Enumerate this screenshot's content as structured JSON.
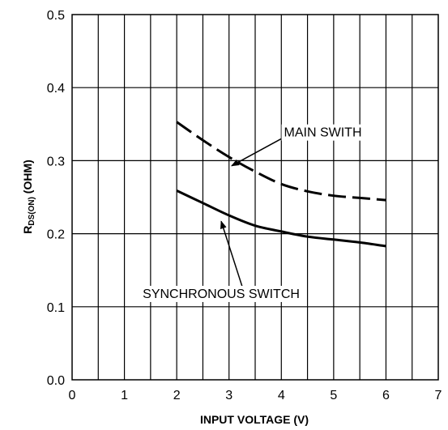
{
  "chart_data": {
    "type": "line",
    "title": "",
    "xlabel": "INPUT VOLTAGE (V)",
    "ylabel_main": "R",
    "ylabel_sub": "DS(ON)",
    "ylabel_rest": " (OHM)",
    "xlim": [
      0,
      7
    ],
    "ylim": [
      0.0,
      0.5
    ],
    "grid": true,
    "x_ticks": [
      "0",
      "1",
      "2",
      "3",
      "4",
      "5",
      "6",
      "7"
    ],
    "y_ticks": [
      "0.0",
      "0.1",
      "0.2",
      "0.3",
      "0.4",
      "0.5"
    ],
    "series": [
      {
        "name": "MAIN SWITH",
        "style": "dashed",
        "x": [
          2.0,
          2.5,
          3.0,
          3.5,
          4.0,
          4.5,
          5.0,
          5.5,
          6.0
        ],
        "y": [
          0.353,
          0.328,
          0.305,
          0.285,
          0.268,
          0.258,
          0.252,
          0.249,
          0.246
        ]
      },
      {
        "name": "SYNCHRONOUS SWITCH",
        "style": "solid",
        "x": [
          2.0,
          2.5,
          3.0,
          3.5,
          4.0,
          4.5,
          5.0,
          5.5,
          6.0
        ],
        "y": [
          0.259,
          0.242,
          0.225,
          0.211,
          0.203,
          0.196,
          0.192,
          0.188,
          0.183
        ]
      }
    ],
    "annotations": [
      {
        "text": "MAIN SWITH",
        "text_x": 4.05,
        "text_y": 0.333,
        "arrow_from": [
          4.0,
          0.33
        ],
        "arrow_to": [
          3.05,
          0.293
        ]
      },
      {
        "text": "SYNCHRONOUS SWITCH",
        "text_x": 1.35,
        "text_y": 0.112,
        "arrow_from": [
          3.25,
          0.128
        ],
        "arrow_to": [
          2.85,
          0.217
        ]
      }
    ],
    "colors": {
      "line": "#000000",
      "grid": "#000000",
      "background": "#ffffff"
    }
  }
}
